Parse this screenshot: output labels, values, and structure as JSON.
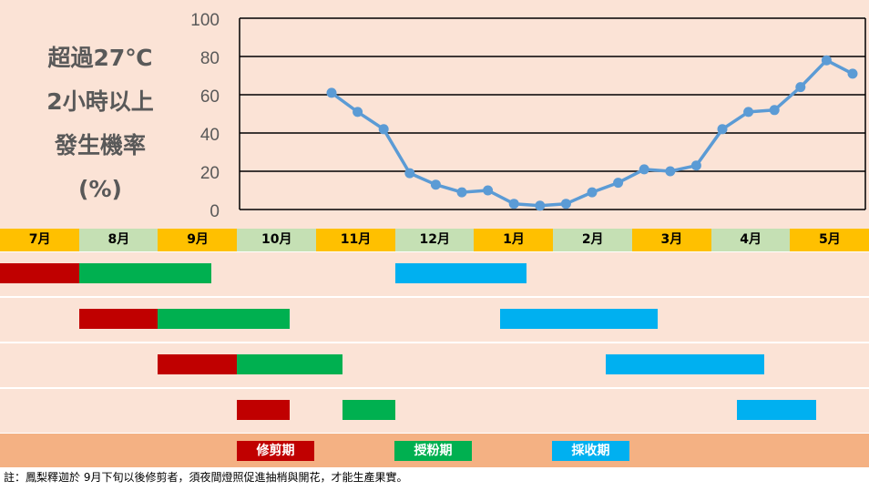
{
  "chart_data": {
    "type": "line",
    "title": "",
    "ylabel_lines": [
      "超過27℃",
      "2小時以上",
      "發生機率",
      "(%)"
    ],
    "ylim": [
      0,
      100
    ],
    "yticks": [
      "0",
      "20",
      "40",
      "60",
      "80",
      "100"
    ],
    "grid": true,
    "points": [
      61,
      51,
      42,
      19,
      13,
      9,
      10,
      3,
      2,
      3,
      9,
      14,
      21,
      20,
      23,
      42,
      51,
      52,
      64,
      78,
      71
    ],
    "line_color": "#5b9bd5"
  },
  "months": [
    {
      "label": "7月",
      "color": "#ffc000"
    },
    {
      "label": "8月",
      "color": "#c5e0b4"
    },
    {
      "label": "9月",
      "color": "#ffc000"
    },
    {
      "label": "10月",
      "color": "#c5e0b4"
    },
    {
      "label": "11月",
      "color": "#ffc000"
    },
    {
      "label": "12月",
      "color": "#c5e0b4"
    },
    {
      "label": "1月",
      "color": "#ffc000"
    },
    {
      "label": "2月",
      "color": "#c5e0b4"
    },
    {
      "label": "3月",
      "color": "#ffc000"
    },
    {
      "label": "4月",
      "color": "#c5e0b4"
    },
    {
      "label": "5月",
      "color": "#ffc000"
    }
  ],
  "schedule_unit": "months from start of July",
  "schedule": [
    {
      "pruning": [
        0.0,
        1.0
      ],
      "pollination": [
        1.0,
        2.67
      ],
      "harvest": [
        5.0,
        6.67
      ]
    },
    {
      "pruning": [
        1.0,
        2.0
      ],
      "pollination": [
        2.0,
        3.67
      ],
      "harvest": [
        6.33,
        8.33
      ]
    },
    {
      "pruning": [
        2.0,
        3.0
      ],
      "pollination": [
        3.0,
        4.33
      ],
      "harvest": [
        7.67,
        9.67
      ]
    },
    {
      "pruning": [
        3.0,
        3.67
      ],
      "pollination": [
        4.33,
        5.0
      ],
      "harvest": [
        9.33,
        10.33
      ]
    }
  ],
  "legend": [
    {
      "label": "修剪期",
      "color": "#c00000"
    },
    {
      "label": "授粉期",
      "color": "#00b050"
    },
    {
      "label": "採收期",
      "color": "#00b0f0"
    }
  ],
  "note": "註：鳳梨釋迦於 9月下旬以後修剪者，須夜間燈照促進抽梢與開花，才能生產果實。"
}
